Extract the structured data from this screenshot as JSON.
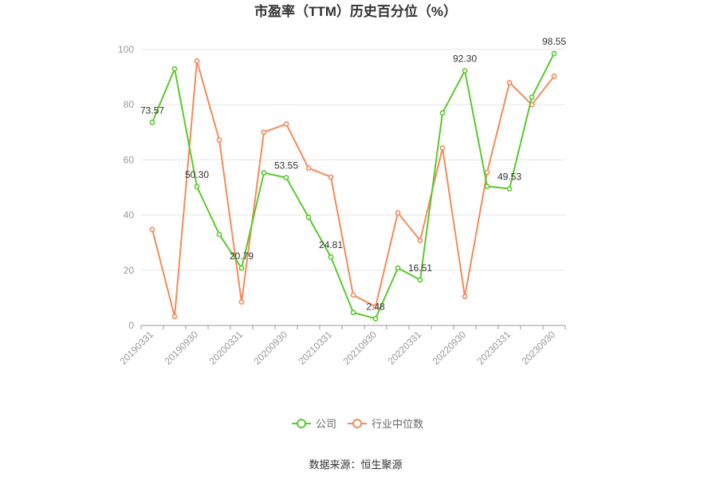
{
  "chart_data": {
    "type": "line",
    "title": "市盈率（TTM）历史百分位（%）",
    "source": "数据来源：恒生聚源",
    "ylim": [
      0,
      100
    ],
    "yticks": [
      0,
      20,
      40,
      60,
      80,
      100
    ],
    "grid": true,
    "legend_position": "bottom",
    "x": [
      "20190331",
      "20190630",
      "20190930",
      "20191231",
      "20200331",
      "20200630",
      "20200930",
      "20201231",
      "20210331",
      "20210630",
      "20210930",
      "20211231",
      "20220331",
      "20220630",
      "20220930",
      "20221231",
      "20230331",
      "20230630",
      "20230930"
    ],
    "xtick_labels": [
      "20190331",
      "20190930",
      "20200331",
      "20200930",
      "20210331",
      "20210930",
      "20220331",
      "20220930",
      "20230331",
      "20230930"
    ],
    "series": [
      {
        "name": "公司",
        "color": "#5cc82e",
        "values": [
          73.57,
          93.0,
          50.3,
          33.0,
          20.79,
          55.3,
          53.55,
          39.2,
          24.81,
          4.7,
          2.48,
          20.8,
          16.51,
          77.0,
          92.3,
          50.4,
          49.53,
          82.7,
          98.55
        ],
        "labels": {
          "0": "73.57",
          "2": "50.30",
          "4": "20.79",
          "6": "53.55",
          "8": "24.81",
          "10": "2.48",
          "12": "16.51",
          "14": "92.30",
          "16": "49.53",
          "18": "98.55"
        }
      },
      {
        "name": "行业中位数",
        "color": "#f28b5c",
        "values": [
          34.8,
          3.2,
          95.8,
          67.2,
          8.5,
          70.0,
          73.0,
          57.0,
          53.8,
          11.0,
          6.8,
          40.8,
          30.8,
          64.3,
          10.5,
          55.5,
          88.0,
          80.0,
          90.3
        ]
      }
    ]
  }
}
